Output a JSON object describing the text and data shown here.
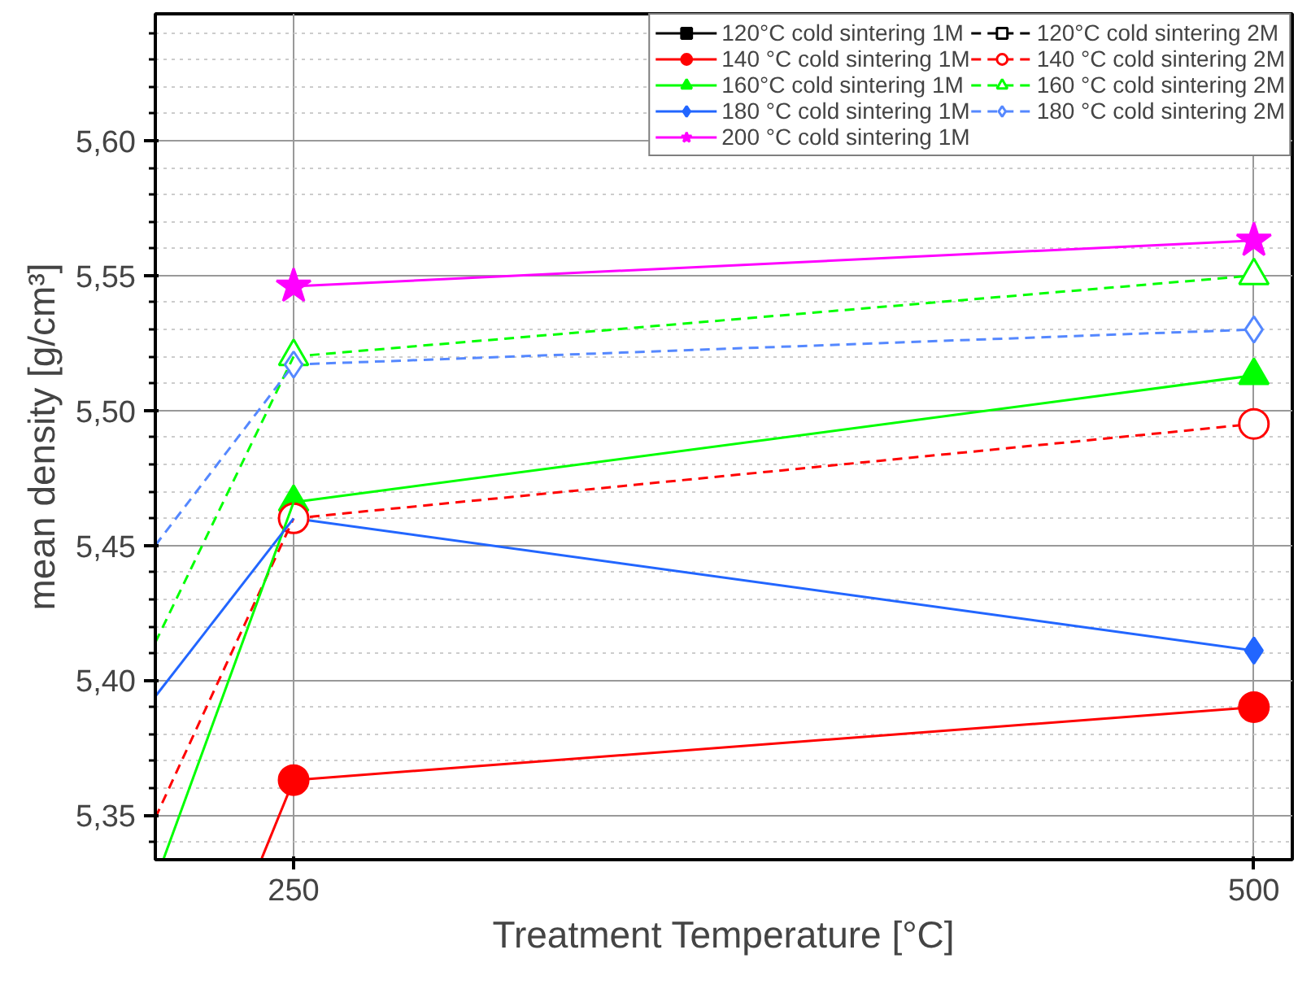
{
  "chart_data": {
    "type": "line",
    "xlabel": "Treatment Temperature [°C]",
    "ylabel": "mean density [g/cm³]",
    "xlim": [
      214,
      510
    ],
    "xticks": [
      250,
      500
    ],
    "ylim": [
      5.3335,
      5.647
    ],
    "yticks": [
      {
        "value": 5.34,
        "label": null
      },
      {
        "value": 5.35,
        "label": "5,35"
      },
      {
        "value": 5.36,
        "label": null
      },
      {
        "value": 5.37,
        "label": null
      },
      {
        "value": 5.38,
        "label": null
      },
      {
        "value": 5.39,
        "label": null
      },
      {
        "value": 5.4,
        "label": "5,40"
      },
      {
        "value": 5.41,
        "label": null
      },
      {
        "value": 5.42,
        "label": null
      },
      {
        "value": 5.43,
        "label": null
      },
      {
        "value": 5.44,
        "label": null
      },
      {
        "value": 5.45,
        "label": "5,45"
      },
      {
        "value": 5.46,
        "label": null
      },
      {
        "value": 5.47,
        "label": null
      },
      {
        "value": 5.48,
        "label": null
      },
      {
        "value": 5.49,
        "label": null
      },
      {
        "value": 5.5,
        "label": "5,50"
      },
      {
        "value": 5.51,
        "label": null
      },
      {
        "value": 5.52,
        "label": null
      },
      {
        "value": 5.53,
        "label": null
      },
      {
        "value": 5.54,
        "label": null
      },
      {
        "value": 5.55,
        "label": "5,55"
      },
      {
        "value": 5.56,
        "label": null
      },
      {
        "value": 5.57,
        "label": null
      },
      {
        "value": 5.58,
        "label": null
      },
      {
        "value": 5.59,
        "label": null
      },
      {
        "value": 5.6,
        "label": "5,60"
      },
      {
        "value": 5.61,
        "label": null
      },
      {
        "value": 5.62,
        "label": null
      },
      {
        "value": 5.63,
        "label": null
      },
      {
        "value": 5.64,
        "label": null
      }
    ],
    "grid": true,
    "legend": "top right",
    "series": [
      {
        "name": "120°C cold sintering 1M",
        "color": "#000000",
        "marker": "square",
        "line_style": "solid"
      },
      {
        "name": "140 °C cold sintering 1M",
        "color": "#ff0000",
        "marker": "circle",
        "line_style": "solid",
        "x": [
          250,
          500
        ],
        "values": [
          5.363,
          5.39
        ]
      },
      {
        "name": "160°C cold sintering 1M",
        "color": "#00ff00",
        "marker": "triangle",
        "line_style": "solid",
        "x": [
          250,
          500
        ],
        "values": [
          5.466,
          5.513
        ]
      },
      {
        "name": "180 °C cold sintering 1M",
        "color": "#2266ff",
        "marker": "diamond",
        "line_style": "solid",
        "x": [
          250,
          500
        ],
        "values": [
          5.46,
          5.411
        ]
      },
      {
        "name": "200 °C cold sintering 1M",
        "color": "#ff00ff",
        "marker": "star",
        "line_style": "solid",
        "x": [
          250,
          500
        ],
        "values": [
          5.546,
          5.563
        ]
      },
      {
        "name": "120°C cold sintering 2M",
        "color": "#000000",
        "marker": "square",
        "line_style": "dashed"
      },
      {
        "name": "140 °C cold sintering 2M",
        "color": "#ff0000",
        "marker": "circle",
        "line_style": "dashed",
        "x": [
          250,
          500
        ],
        "values": [
          5.46,
          5.495
        ]
      },
      {
        "name": "160 °C cold sintering 2M",
        "color": "#00ff00",
        "marker": "triangle",
        "line_style": "dashed",
        "x": [
          250,
          500
        ],
        "values": [
          5.52,
          5.55
        ]
      },
      {
        "name": "180 °C cold sintering 2M",
        "color": "#5588ff",
        "marker": "diamond",
        "line_style": "dashed",
        "x": [
          250,
          500
        ],
        "values": [
          5.517,
          5.53
        ]
      },
      {
        "color": "#ff0000",
        "marker": "none",
        "line_style": "solid",
        "x": [
          241.7,
          250
        ],
        "values": [
          5.334,
          5.363
        ]
      },
      {
        "color": "#ff0000",
        "marker": "none",
        "line_style": "dashed",
        "x": [
          214,
          250
        ],
        "values": [
          5.349,
          5.46
        ]
      },
      {
        "color": "#00ff00",
        "marker": "none",
        "line_style": "solid",
        "x": [
          216.2,
          250
        ],
        "values": [
          5.334,
          5.466
        ]
      },
      {
        "color": "#00ff00",
        "marker": "none",
        "line_style": "dashed",
        "x": [
          214,
          250
        ],
        "values": [
          5.414,
          5.52
        ]
      },
      {
        "color": "#2266ff",
        "marker": "none",
        "line_style": "solid",
        "x": [
          214,
          250
        ],
        "values": [
          5.394,
          5.46
        ]
      },
      {
        "color": "#5588ff",
        "marker": "none",
        "line_style": "dashed",
        "x": [
          214,
          250
        ],
        "values": [
          5.45,
          5.517
        ]
      }
    ]
  }
}
